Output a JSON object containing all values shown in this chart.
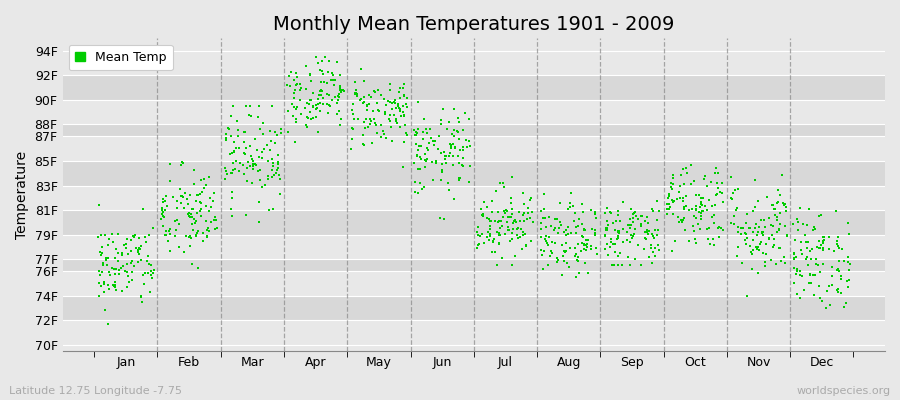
{
  "title": "Monthly Mean Temperatures 1901 - 2009",
  "ylabel": "Temperature",
  "xlabel_labels": [
    "Jan",
    "Feb",
    "Mar",
    "Apr",
    "May",
    "Jun",
    "Jul",
    "Aug",
    "Sep",
    "Oct",
    "Nov",
    "Dec"
  ],
  "ytick_labels": [
    "70F",
    "72F",
    "74F",
    "76F",
    "77F",
    "79F",
    "81F",
    "83F",
    "85F",
    "87F",
    "88F",
    "90F",
    "92F",
    "94F"
  ],
  "ytick_values": [
    70,
    72,
    74,
    76,
    77,
    79,
    81,
    83,
    85,
    87,
    88,
    90,
    92,
    94
  ],
  "ylim": [
    69.5,
    95.0
  ],
  "xlim": [
    -0.5,
    12.5
  ],
  "dot_color": "#00cc00",
  "fig_bg_color": "#e8e8e8",
  "plot_bg_color": "#e8e8e8",
  "band_colors": [
    "#e8e8e8",
    "#d8d8d8"
  ],
  "grid_line_color": "#ffffff",
  "vline_color": "#888888",
  "title_fontsize": 14,
  "tick_fontsize": 9,
  "ylabel_fontsize": 10,
  "legend_label": "Mean Temp",
  "subtitle_left": "Latitude 12.75 Longitude -7.75",
  "subtitle_right": "worldspecies.org",
  "monthly_mean": [
    76.5,
    80.5,
    85.5,
    90.5,
    89.0,
    85.5,
    80.0,
    78.5,
    79.0,
    81.5,
    79.5,
    77.0
  ],
  "monthly_std": [
    1.8,
    2.0,
    2.0,
    1.5,
    1.5,
    1.8,
    1.5,
    1.5,
    1.5,
    1.8,
    2.0,
    2.0
  ],
  "monthly_min": [
    70.0,
    72.0,
    79.0,
    86.5,
    84.5,
    79.0,
    76.5,
    75.5,
    76.5,
    77.5,
    74.0,
    73.0
  ],
  "monthly_max": [
    82.0,
    87.5,
    89.5,
    93.5,
    93.5,
    91.0,
    84.0,
    82.5,
    82.5,
    85.0,
    84.0,
    82.0
  ],
  "num_years": 109,
  "seed": 42,
  "dot_size": 4
}
